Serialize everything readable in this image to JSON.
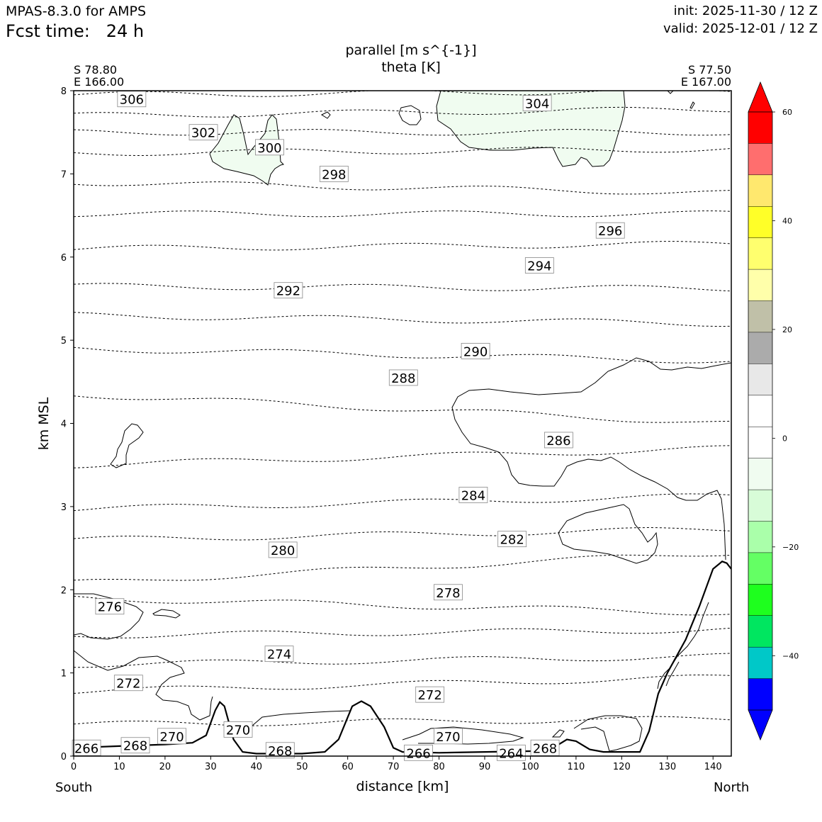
{
  "header": {
    "model": "MPAS-8.3.0 for AMPS",
    "fcst_label": "Fcst time:   24 h",
    "init": "init: 2025-11-30 / 12 Z",
    "valid": "valid: 2025-12-01 / 12 Z"
  },
  "chart_data": {
    "type": "contour",
    "title_line1": "parallel [m s^{-1}]",
    "title_line2": "theta [K]",
    "xlabel": "distance [km]",
    "ylabel": "km MSL",
    "xlim": [
      0,
      144
    ],
    "ylim": [
      0,
      8
    ],
    "x_ticks": [
      0,
      10,
      20,
      30,
      40,
      50,
      60,
      70,
      80,
      90,
      100,
      110,
      120,
      130,
      140
    ],
    "y_ticks": [
      0,
      1,
      2,
      3,
      4,
      5,
      6,
      7,
      8
    ],
    "left_endpoint": {
      "lat": "S 78.80",
      "lon": "E 166.00",
      "label": "South"
    },
    "right_endpoint": {
      "lat": "S 77.50",
      "lon": "E 167.00",
      "label": "North"
    },
    "theta_labels": [
      {
        "value": "306",
        "x": 12.7,
        "y": 7.9
      },
      {
        "value": "304",
        "x": 101.5,
        "y": 7.85
      },
      {
        "value": "302",
        "x": 28.4,
        "y": 7.5
      },
      {
        "value": "300",
        "x": 42.9,
        "y": 7.32
      },
      {
        "value": "298",
        "x": 57.0,
        "y": 7.0
      },
      {
        "value": "296",
        "x": 117.5,
        "y": 6.32
      },
      {
        "value": "294",
        "x": 102.0,
        "y": 5.9
      },
      {
        "value": "292",
        "x": 47.0,
        "y": 5.6
      },
      {
        "value": "290",
        "x": 88.0,
        "y": 4.87
      },
      {
        "value": "288",
        "x": 72.2,
        "y": 4.55
      },
      {
        "value": "286",
        "x": 106.2,
        "y": 3.8
      },
      {
        "value": "284",
        "x": 87.5,
        "y": 3.14
      },
      {
        "value": "282",
        "x": 96.0,
        "y": 2.61
      },
      {
        "value": "280",
        "x": 45.8,
        "y": 2.48
      },
      {
        "value": "278",
        "x": 82.0,
        "y": 1.97
      },
      {
        "value": "276",
        "x": 7.9,
        "y": 1.8
      },
      {
        "value": "274",
        "x": 45.0,
        "y": 1.23
      },
      {
        "value": "272",
        "x": 12.0,
        "y": 0.88
      },
      {
        "value": "272",
        "x": 78.0,
        "y": 0.74
      },
      {
        "value": "270",
        "x": 21.5,
        "y": 0.24
      },
      {
        "value": "270",
        "x": 36.0,
        "y": 0.32
      },
      {
        "value": "270",
        "x": 82.0,
        "y": 0.24
      },
      {
        "value": "268",
        "x": 13.5,
        "y": 0.13
      },
      {
        "value": "268",
        "x": 45.2,
        "y": 0.07
      },
      {
        "value": "268",
        "x": 103.2,
        "y": 0.1
      },
      {
        "value": "266",
        "x": 2.8,
        "y": 0.1
      },
      {
        "value": "266",
        "x": 75.5,
        "y": 0.04
      },
      {
        "value": "264",
        "x": 95.8,
        "y": 0.04
      }
    ],
    "colorbar": {
      "ticks": [
        "60",
        "40",
        "20",
        "0",
        "−20",
        "−40"
      ],
      "tick_values": [
        60,
        40,
        20,
        0,
        -20,
        -40
      ],
      "range": [
        -50,
        60
      ],
      "colors_top_to_bottom": [
        "#ff0000",
        "#ff6e6e",
        "#ffe86e",
        "#ffff28",
        "#ffff6e",
        "#ffffaa",
        "#c0c0a8",
        "#ababab",
        "#e8e8e8",
        "#ffffff",
        "#ffffff",
        "#f0fcf0",
        "#d8fcd8",
        "#aaffaa",
        "#64ff64",
        "#1eff1e",
        "#00e660",
        "#00c8c8",
        "#0000ff"
      ],
      "extend_max_color": "#ff0000",
      "extend_min_color": "#0000ff"
    }
  }
}
